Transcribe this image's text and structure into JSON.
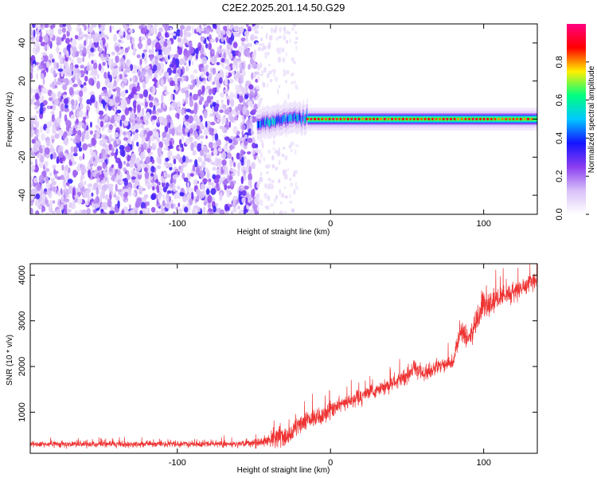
{
  "figure": {
    "title": "C2E2.2025.201.14.50.G29"
  },
  "chart_data": [
    {
      "type": "heatmap",
      "title": "C2E2.2025.201.14.50.G29",
      "xlabel": "Height of straight line (km)",
      "ylabel": "Frequency (Hz)",
      "xlim": [
        -196,
        135
      ],
      "ylim": [
        -50,
        50
      ],
      "xticks": [
        -100,
        0,
        100
      ],
      "xtick_labels": [
        "-100",
        "0",
        "100"
      ],
      "yticks": [
        -40,
        -20,
        0,
        20,
        40
      ],
      "ytick_labels": [
        "-40",
        "-20",
        "0",
        "20",
        "40"
      ],
      "grid": false,
      "colorbar": {
        "label": "Normalized spectral amplitude",
        "range": [
          0,
          1
        ],
        "ticks": [
          0.0,
          0.2,
          0.4,
          0.6,
          0.8
        ],
        "tick_labels": [
          "0.0",
          "0.2",
          "0.4",
          "0.6",
          "0.8"
        ],
        "colormap": "rainbow (white → purple → blue → cyan → green → yellow → red → magenta)",
        "colors": [
          "#ffffff",
          "#d8c0f8",
          "#8a3df0",
          "#1414ff",
          "#00c8ff",
          "#00ff7f",
          "#fff000",
          "#ff0000",
          "#ff0080"
        ]
      },
      "regions": [
        {
          "x_range": [
            -196,
            -48
          ],
          "description_value": "dense noise, amplitude 0.1–0.3"
        },
        {
          "x_range": [
            -48,
            -25
          ],
          "description_value": "sparse noise, amplitude ~0.05"
        },
        {
          "x_range": [
            -48,
            -15
          ],
          "ridge_frequency": 0,
          "ridge_amplitude": [
            0.3,
            0.6
          ]
        },
        {
          "x_range": [
            -15,
            135
          ],
          "ridge_frequency": 0,
          "ridge_amplitude": [
            0.8,
            0.95
          ]
        }
      ]
    },
    {
      "type": "line",
      "xlabel": "Height of straight line (km)",
      "ylabel": "SNR (10 * v/v)",
      "xlim": [
        -196,
        135
      ],
      "ylim": [
        100,
        4250
      ],
      "xticks": [
        -100,
        0,
        100
      ],
      "xtick_labels": [
        "-100",
        "0",
        "100"
      ],
      "yticks": [
        1000,
        2000,
        3000,
        4000
      ],
      "ytick_labels": [
        "1000",
        "2000",
        "3000",
        "4000"
      ],
      "grid": false,
      "line_color": "#ee3333",
      "x": [
        -196,
        -150,
        -100,
        -60,
        -45,
        -35,
        -25,
        -20,
        -10,
        0,
        10,
        20,
        30,
        40,
        50,
        55,
        60,
        70,
        80,
        85,
        90,
        100,
        110,
        120,
        130,
        135
      ],
      "y": [
        300,
        300,
        300,
        310,
        330,
        450,
        500,
        750,
        850,
        1050,
        1200,
        1350,
        1450,
        1600,
        1800,
        2000,
        1800,
        2000,
        2100,
        2800,
        2600,
        3300,
        3500,
        3600,
        3850,
        3900
      ],
      "noise_amplitude": [
        100,
        100,
        100,
        100,
        150,
        350,
        350,
        350,
        300,
        300,
        250,
        250,
        250,
        250,
        280,
        300,
        250,
        250,
        300,
        300,
        350,
        500,
        350,
        300,
        300,
        300
      ]
    }
  ]
}
